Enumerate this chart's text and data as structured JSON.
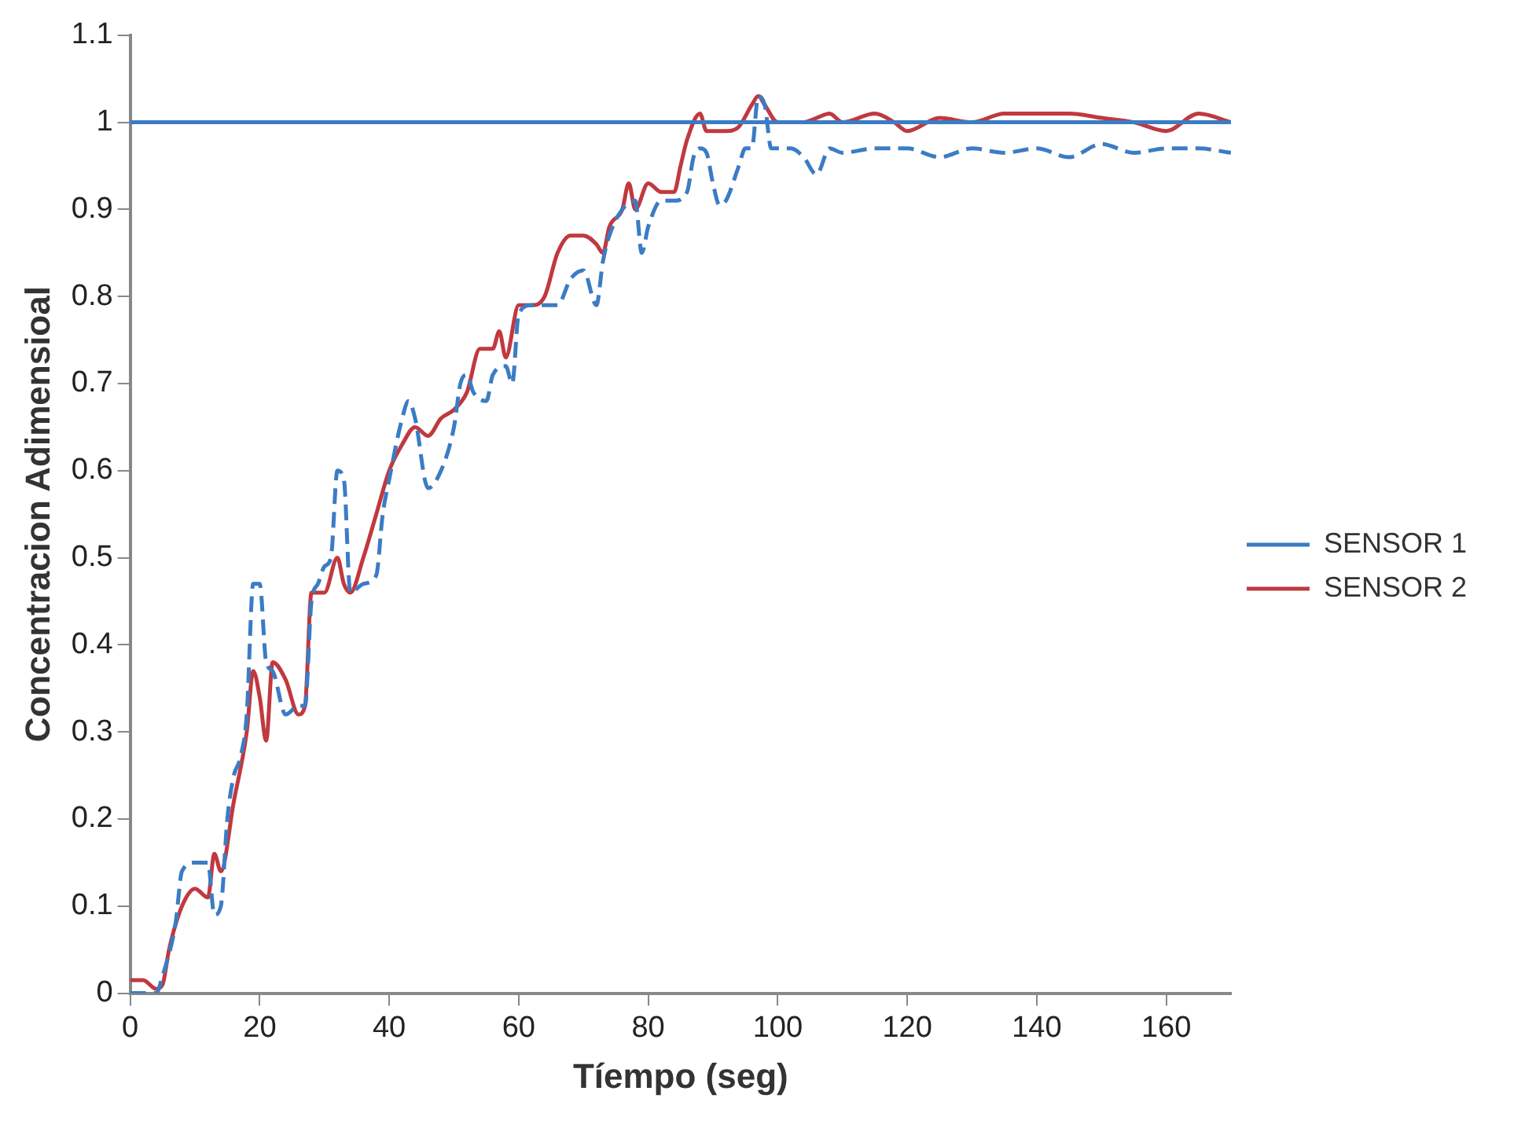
{
  "chart_data": {
    "type": "line",
    "xlabel": "Tíempo (seg)",
    "ylabel": "Concentracion Adimensioal",
    "xlim": [
      0,
      170
    ],
    "xticks": [
      0,
      20,
      40,
      60,
      80,
      100,
      120,
      140,
      160
    ],
    "ylim": [
      0,
      1.1
    ],
    "yticks": [
      0,
      0.1,
      0.2,
      0.3,
      0.4,
      0.5,
      0.6,
      0.7,
      0.8,
      0.9,
      1,
      1.1
    ],
    "grid": false,
    "legend": "right",
    "marker": "none",
    "ref_lines": [
      {
        "axis": "y",
        "value": 1,
        "color": "#3b7cc4",
        "line_style": "solid"
      }
    ],
    "series": [
      {
        "name": "SENSOR 1",
        "color": "#3b7cc4",
        "line_style": "dashed",
        "x": [
          0,
          4,
          5,
          7,
          8,
          10,
          12,
          13,
          14,
          15,
          16,
          17,
          18,
          19,
          20,
          21,
          22,
          24,
          26,
          27,
          28,
          29,
          30,
          31,
          32,
          33,
          34,
          36,
          38,
          39,
          40,
          42,
          43,
          44,
          46,
          48,
          50,
          51,
          52,
          53,
          55,
          56,
          58,
          59,
          60,
          62,
          64,
          66,
          68,
          70,
          72,
          73,
          74,
          76,
          78,
          79,
          80,
          82,
          84,
          86,
          87,
          88,
          89,
          90,
          91,
          92,
          94,
          95,
          96,
          97,
          98,
          99,
          100,
          102,
          104,
          106,
          108,
          110,
          115,
          120,
          125,
          130,
          135,
          140,
          145,
          150,
          155,
          160,
          165,
          170
        ],
        "values": [
          0,
          0,
          0.02,
          0.08,
          0.14,
          0.15,
          0.15,
          0.09,
          0.1,
          0.2,
          0.25,
          0.27,
          0.32,
          0.47,
          0.47,
          0.38,
          0.37,
          0.32,
          0.33,
          0.33,
          0.45,
          0.47,
          0.49,
          0.5,
          0.6,
          0.59,
          0.46,
          0.47,
          0.48,
          0.55,
          0.59,
          0.66,
          0.68,
          0.66,
          0.58,
          0.6,
          0.65,
          0.7,
          0.71,
          0.69,
          0.68,
          0.71,
          0.72,
          0.7,
          0.78,
          0.79,
          0.79,
          0.79,
          0.82,
          0.83,
          0.79,
          0.84,
          0.87,
          0.9,
          0.91,
          0.85,
          0.88,
          0.91,
          0.91,
          0.92,
          0.96,
          0.97,
          0.965,
          0.93,
          0.905,
          0.91,
          0.95,
          0.97,
          0.97,
          1.03,
          1.02,
          0.97,
          0.97,
          0.97,
          0.96,
          0.94,
          0.97,
          0.965,
          0.97,
          0.97,
          0.96,
          0.97,
          0.965,
          0.97,
          0.96,
          0.975,
          0.965,
          0.97,
          0.97,
          0.965
        ]
      },
      {
        "name": "SENSOR 2",
        "color": "#c0393f",
        "line_style": "solid",
        "x": [
          0,
          2,
          4,
          5,
          6,
          8,
          10,
          12,
          13,
          14,
          16,
          18,
          19,
          20,
          21,
          22,
          24,
          26,
          27,
          28,
          30,
          32,
          33,
          34,
          36,
          38,
          40,
          42,
          44,
          46,
          48,
          50,
          52,
          54,
          56,
          57,
          58,
          60,
          62,
          64,
          66,
          68,
          70,
          72,
          73,
          74,
          76,
          77,
          78,
          80,
          82,
          84,
          85,
          86,
          88,
          89,
          90,
          92,
          94,
          96,
          97,
          98,
          100,
          104,
          106,
          108,
          110,
          115,
          118,
          120,
          125,
          130,
          135,
          140,
          145,
          150,
          155,
          160,
          165,
          170
        ],
        "values": [
          0.015,
          0.015,
          0.005,
          0.01,
          0.05,
          0.1,
          0.12,
          0.11,
          0.16,
          0.14,
          0.22,
          0.3,
          0.37,
          0.34,
          0.29,
          0.38,
          0.36,
          0.32,
          0.33,
          0.46,
          0.46,
          0.5,
          0.47,
          0.46,
          0.5,
          0.55,
          0.6,
          0.63,
          0.65,
          0.64,
          0.66,
          0.67,
          0.69,
          0.74,
          0.74,
          0.76,
          0.73,
          0.79,
          0.79,
          0.8,
          0.85,
          0.87,
          0.87,
          0.86,
          0.85,
          0.88,
          0.9,
          0.93,
          0.9,
          0.93,
          0.92,
          0.92,
          0.95,
          0.98,
          1.01,
          0.99,
          0.99,
          0.99,
          0.995,
          1.02,
          1.03,
          1.02,
          1,
          1,
          1.005,
          1.01,
          1,
          1.01,
          1,
          0.99,
          1.005,
          1,
          1.01,
          1.01,
          1.01,
          1.005,
          1,
          0.99,
          1.01,
          1
        ]
      }
    ]
  }
}
